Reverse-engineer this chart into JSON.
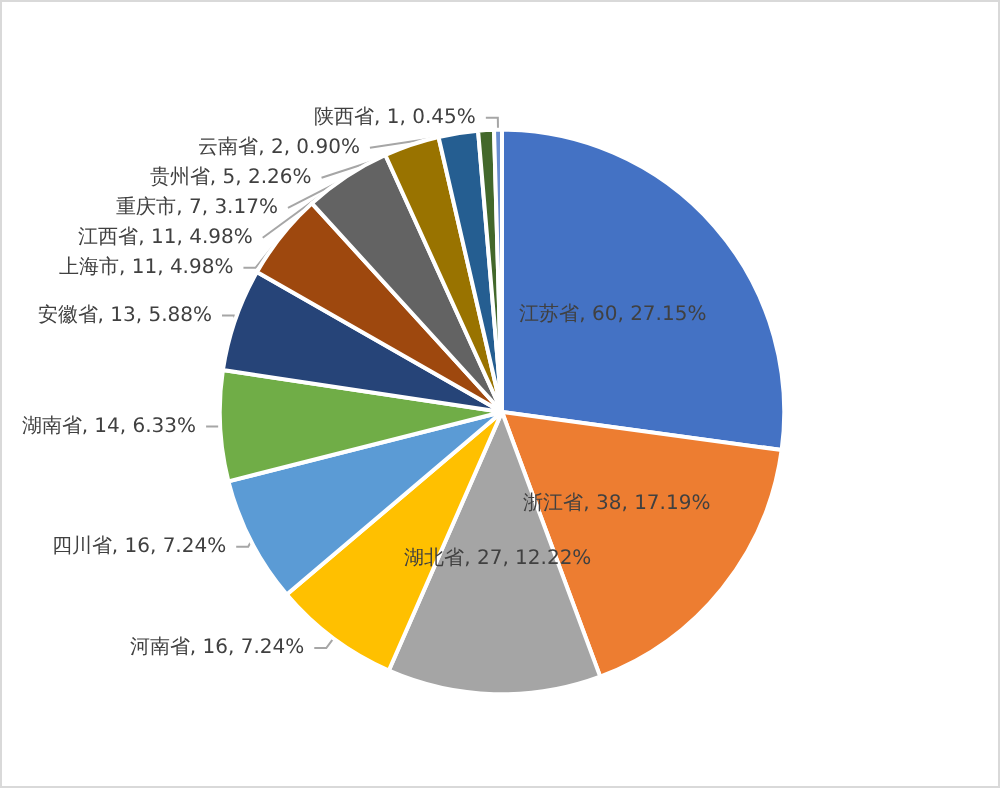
{
  "chart_data": {
    "type": "pie",
    "categories": [
      "江苏省",
      "浙江省",
      "湖北省",
      "河南省",
      "四川省",
      "湖南省",
      "安徽省",
      "上海市",
      "江西省",
      "重庆市",
      "贵州省",
      "云南省",
      "陕西省"
    ],
    "values": [
      27.15,
      17.19,
      12.22,
      7.24,
      7.24,
      6.33,
      5.88,
      4.98,
      4.98,
      3.17,
      2.26,
      0.9,
      0.45
    ],
    "value_labels": [
      "60, 27.15%",
      "38, 17.19%",
      "27, 12.22%",
      "16, 7.24%",
      "16, 7.24%",
      "14, 6.33%",
      "13, 5.88%",
      "11, 4.98%",
      "11, 4.98%",
      "7, 3.17%",
      "5, 2.26%",
      "2, 0.90%",
      "1, 0.45%"
    ],
    "colors": [
      "#4472c4",
      "#ed7d31",
      "#a5a5a5",
      "#ffc000",
      "#5b9bd5",
      "#70ad47",
      "#264478",
      "#9e480e",
      "#636363",
      "#997300",
      "#255e91",
      "#43682b",
      "#698ed0"
    ],
    "legend": false
  }
}
